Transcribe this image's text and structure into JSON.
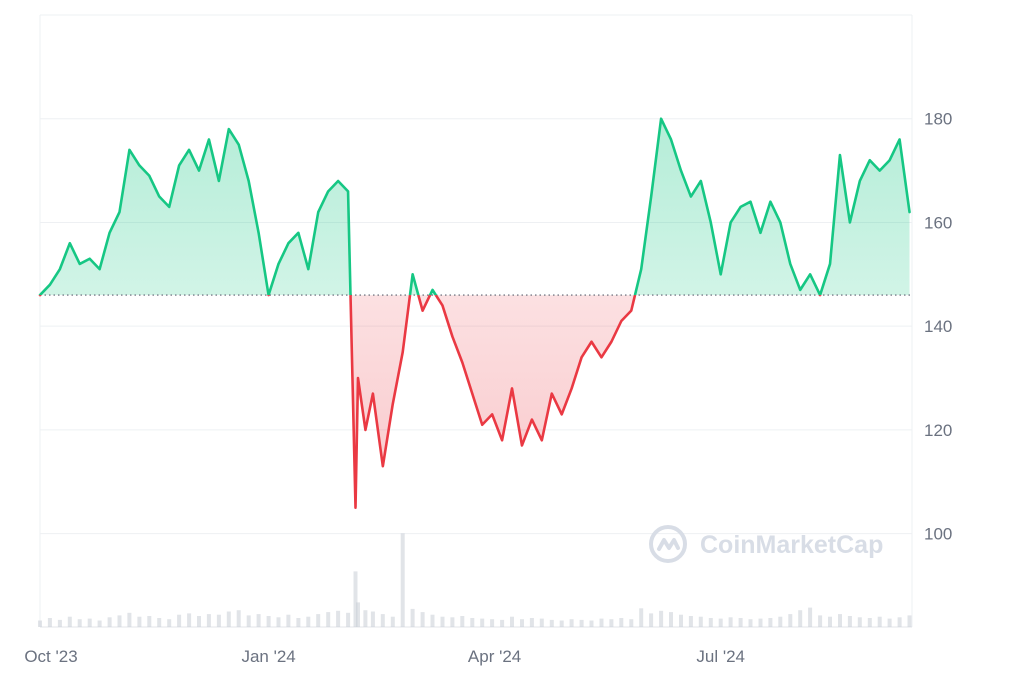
{
  "watermark": {
    "text": "CoinMarketCap",
    "icon": "coinmarketcap-logo-icon"
  },
  "colors": {
    "up_line": "#16c784",
    "up_fill": "#16c784",
    "down_line": "#ea3943",
    "down_fill": "#ea3943",
    "baseline": "#5b6070",
    "gridline": "#eef0f3",
    "axis_text": "#6b7280",
    "volume": "#c9ced6",
    "watermark": "#d8dde6"
  },
  "chart_data": {
    "type": "line",
    "baseline_value": 146,
    "ylim": [
      82,
      200
    ],
    "yticks": [
      100,
      120,
      140,
      160,
      180
    ],
    "ytick_labels": [
      "100",
      "120",
      "140",
      "160",
      "180"
    ],
    "xlim": [
      "2023-10-01",
      "2024-09-16"
    ],
    "xticks": [
      "2023-10-01",
      "2024-01-01",
      "2024-04-01",
      "2024-07-01"
    ],
    "xtick_labels": [
      "Oct '23",
      "Jan '24",
      "Apr '24",
      "Jul '24"
    ],
    "grid": true,
    "series": [
      {
        "x": [
          "2023-10-01",
          "2023-10-05",
          "2023-10-09",
          "2023-10-13",
          "2023-10-17",
          "2023-10-21",
          "2023-10-25",
          "2023-10-29",
          "2023-11-02",
          "2023-11-06",
          "2023-11-10",
          "2023-11-14",
          "2023-11-18",
          "2023-11-22",
          "2023-11-26",
          "2023-11-30",
          "2023-12-04",
          "2023-12-08",
          "2023-12-12",
          "2023-12-16",
          "2023-12-20",
          "2023-12-24",
          "2023-12-28",
          "2024-01-01",
          "2024-01-05",
          "2024-01-09",
          "2024-01-13",
          "2024-01-17",
          "2024-01-21",
          "2024-01-25",
          "2024-01-29",
          "2024-02-02",
          "2024-02-05",
          "2024-02-06",
          "2024-02-09",
          "2024-02-12",
          "2024-02-16",
          "2024-02-20",
          "2024-02-24",
          "2024-02-28",
          "2024-03-03",
          "2024-03-07",
          "2024-03-11",
          "2024-03-15",
          "2024-03-19",
          "2024-03-23",
          "2024-03-27",
          "2024-03-31",
          "2024-04-04",
          "2024-04-08",
          "2024-04-12",
          "2024-04-16",
          "2024-04-20",
          "2024-04-24",
          "2024-04-28",
          "2024-05-02",
          "2024-05-06",
          "2024-05-10",
          "2024-05-14",
          "2024-05-18",
          "2024-05-22",
          "2024-05-26",
          "2024-05-30",
          "2024-06-03",
          "2024-06-07",
          "2024-06-11",
          "2024-06-15",
          "2024-06-19",
          "2024-06-23",
          "2024-06-27",
          "2024-07-01",
          "2024-07-05",
          "2024-07-09",
          "2024-07-13",
          "2024-07-17",
          "2024-07-21",
          "2024-07-25",
          "2024-07-29",
          "2024-08-02",
          "2024-08-06",
          "2024-08-10",
          "2024-08-14",
          "2024-08-18",
          "2024-08-22",
          "2024-08-26",
          "2024-08-30",
          "2024-09-03",
          "2024-09-07",
          "2024-09-11",
          "2024-09-15"
        ],
        "y": [
          146,
          148,
          151,
          156,
          152,
          153,
          151,
          158,
          162,
          174,
          171,
          169,
          165,
          163,
          171,
          174,
          170,
          176,
          168,
          178,
          175,
          168,
          158,
          146,
          152,
          156,
          158,
          151,
          162,
          166,
          168,
          166,
          105,
          130,
          120,
          127,
          113,
          125,
          135,
          150,
          143,
          147,
          144,
          138,
          133,
          127,
          121,
          123,
          118,
          128,
          117,
          122,
          118,
          127,
          123,
          128,
          134,
          137,
          134,
          137,
          141,
          143,
          151,
          165,
          180,
          176,
          170,
          165,
          168,
          160,
          150,
          160,
          163,
          164,
          158,
          164,
          160,
          152,
          147,
          150,
          146,
          152,
          173,
          160,
          168,
          172,
          170,
          172,
          176,
          162
        ]
      }
    ],
    "volume": [
      1.0,
      1.4,
      1.1,
      1.6,
      1.2,
      1.3,
      1.0,
      1.5,
      1.8,
      2.2,
      1.6,
      1.7,
      1.4,
      1.2,
      1.9,
      2.1,
      1.7,
      2.0,
      1.9,
      2.4,
      2.6,
      1.8,
      2.0,
      1.7,
      1.5,
      1.9,
      1.4,
      1.6,
      2.0,
      2.3,
      2.5,
      2.2,
      8.6,
      3.8,
      2.6,
      2.4,
      2.0,
      1.6,
      14.5,
      2.8,
      2.3,
      1.9,
      1.6,
      1.5,
      1.7,
      1.4,
      1.3,
      1.2,
      1.1,
      1.6,
      1.2,
      1.4,
      1.3,
      1.1,
      1.0,
      1.2,
      1.1,
      1.0,
      1.3,
      1.2,
      1.4,
      1.2,
      2.9,
      2.1,
      2.5,
      2.3,
      1.9,
      1.7,
      1.6,
      1.4,
      1.3,
      1.5,
      1.4,
      1.2,
      1.3,
      1.4,
      1.6,
      2.0,
      2.6,
      3.0,
      1.8,
      1.6,
      2.0,
      1.7,
      1.5,
      1.4,
      1.6,
      1.3,
      1.5,
      1.8
    ],
    "volume_max": 16
  }
}
